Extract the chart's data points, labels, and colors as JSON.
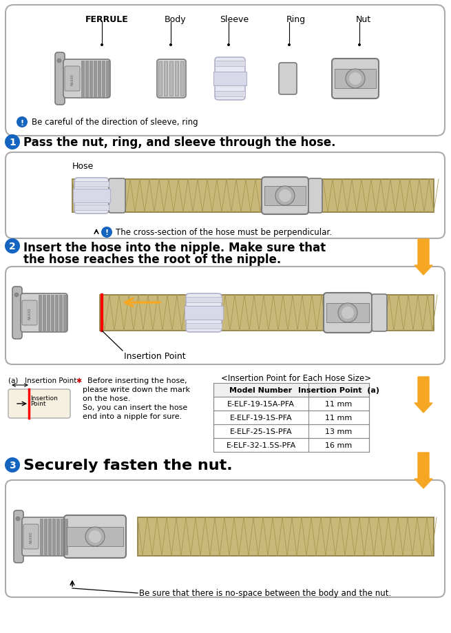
{
  "bg_color": "#ffffff",
  "step_circle_color": "#1565c0",
  "warning_circle_color": "#1565c0",
  "orange_color": "#f5a623",
  "parts_labels": [
    "FERRULE",
    "Body",
    "Sleeve",
    "Ring",
    "Nut"
  ],
  "warning1": "Be careful of the direction of sleeve, ring",
  "warning2": "The cross-section of the hose must be perpendicular.",
  "step1_heading": "Pass the nut, ring, and sleeve through the hose.",
  "step2_line1": "Insert the hose into the nipple. Make sure that",
  "step2_line2": "the hose reaches the root of the nipple.",
  "step3_heading": "Securely fasten the nut.",
  "hose_label": "Hose",
  "insertion_pt_label": "Insertion Point",
  "a_label": "(a)   Insertion Point",
  "insertion_note_line1": "  Before inserting the hose,",
  "insertion_note_line2": "please write down the mark",
  "insertion_note_line3": "on the hose.",
  "insertion_note_line4": "So, you can insert the hose",
  "insertion_note_line5": "end into a nipple for sure.",
  "table_title": "<Insertion Point for Each Hose Size>",
  "table_col1": "Model Number",
  "table_col2": "Insertion Point  (a)",
  "table_rows": [
    [
      "E-ELF-19-15A-PFA",
      "11 mm"
    ],
    [
      "E-ELF-19-1S-PFA",
      "11 mm"
    ],
    [
      "E-ELF-25-1S-PFA",
      "13 mm"
    ],
    [
      "E-ELF-32-1.5S-PFA",
      "16 mm"
    ]
  ],
  "final_note": "Be sure that there is no-space between the body and the nut.",
  "hose_braid_color": "#c8b87a",
  "hose_braid_dark": "#a89850",
  "hose_edge_color": "#8a7a40",
  "metal_light": "#d0d0d0",
  "metal_mid": "#b8b8b8",
  "metal_dark": "#989898",
  "metal_edge": "#787878",
  "sleeve_color": "#e8e8f2",
  "sleeve_edge": "#b0b0c8"
}
